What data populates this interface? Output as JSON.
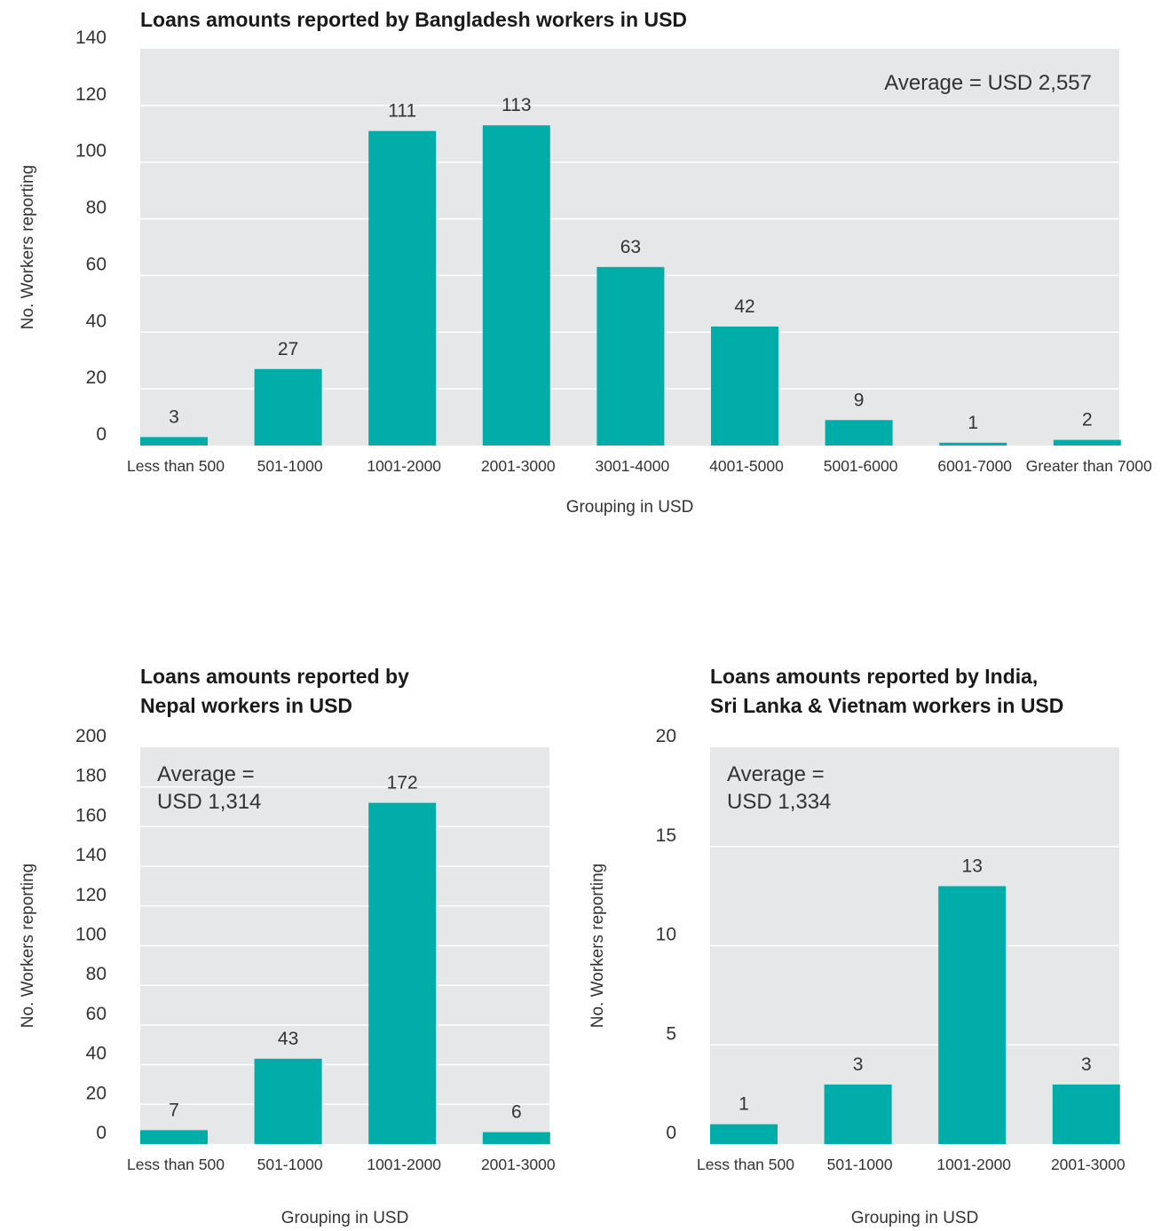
{
  "chart_data": [
    {
      "type": "bar",
      "title": "Loans amounts reported by Bangladesh workers in USD",
      "xlabel": "Grouping in USD",
      "ylabel": "No. Workers reporting",
      "categories": [
        "Less than 500",
        "501-1000",
        "1001-2000",
        "2001-3000",
        "3001-4000",
        "4001-5000",
        "5001-6000",
        "6001-7000",
        "Greater than 7000"
      ],
      "values": [
        3,
        27,
        111,
        113,
        63,
        42,
        9,
        1,
        2
      ],
      "value_labels": [
        "3",
        "27",
        "111",
        "113",
        "63",
        "42",
        "9",
        "1",
        "2"
      ],
      "ylim": [
        0,
        140
      ],
      "yticks": [
        "0",
        "20",
        "40",
        "60",
        "80",
        "100",
        "120",
        "140"
      ],
      "annotation": [
        "Average = USD 2,557"
      ],
      "grid": true,
      "bar_color": "#00ADA9",
      "plot_bg": "#E6E7E8"
    },
    {
      "type": "bar",
      "title": "Loans amounts reported by Nepal workers in USD",
      "title_lines": [
        "Loans amounts reported by",
        "Nepal workers in USD"
      ],
      "xlabel": "Grouping in USD",
      "ylabel": "No. Workers reporting",
      "categories": [
        "Less than 500",
        "501-1000",
        "1001-2000",
        "2001-3000"
      ],
      "values": [
        7,
        43,
        172,
        6
      ],
      "value_labels": [
        "7",
        "43",
        "172",
        "6"
      ],
      "ylim": [
        0,
        200
      ],
      "yticks": [
        "0",
        "20",
        "40",
        "60",
        "80",
        "100",
        "120",
        "140",
        "160",
        "180",
        "200"
      ],
      "annotation": [
        "Average =",
        "USD 1,314"
      ],
      "grid": true,
      "bar_color": "#00ADA9",
      "plot_bg": "#E6E7E8"
    },
    {
      "type": "bar",
      "title": "Loans amounts reported by India, Sri Lanka & Vietnam workers in USD",
      "title_lines": [
        "Loans amounts reported by India,",
        "Sri Lanka & Vietnam workers in USD"
      ],
      "xlabel": "Grouping in USD",
      "ylabel": "No. Workers reporting",
      "categories": [
        "Less than 500",
        "501-1000",
        "1001-2000",
        "2001-3000"
      ],
      "values": [
        1,
        3,
        13,
        3
      ],
      "value_labels": [
        "1",
        "3",
        "13",
        "3"
      ],
      "ylim": [
        0,
        20
      ],
      "yticks": [
        "0",
        "5",
        "10",
        "15",
        "20"
      ],
      "annotation": [
        "Average =",
        "USD 1,334"
      ],
      "grid": true,
      "bar_color": "#00ADA9",
      "plot_bg": "#E6E7E8"
    }
  ]
}
